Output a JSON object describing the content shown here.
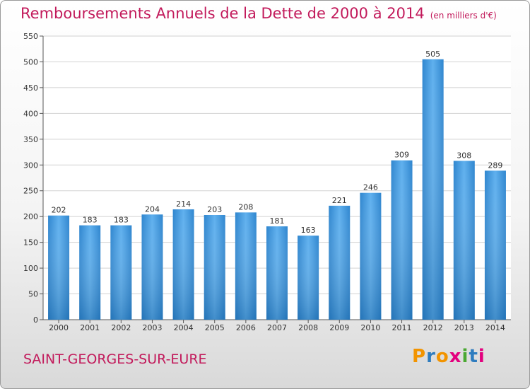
{
  "chart_data": {
    "type": "bar",
    "title": "Remboursements Annuels de la Dette de 2000 à 2014",
    "subtitle": "(en milliers d'€)",
    "categories": [
      "2000",
      "2001",
      "2002",
      "2003",
      "2004",
      "2005",
      "2006",
      "2007",
      "2008",
      "2009",
      "2010",
      "2011",
      "2012",
      "2013",
      "2014"
    ],
    "values": [
      202,
      183,
      183,
      204,
      214,
      203,
      208,
      181,
      163,
      221,
      246,
      309,
      505,
      308,
      289
    ],
    "ylim": [
      0,
      550
    ],
    "yticks": [
      0,
      50,
      100,
      150,
      200,
      250,
      300,
      350,
      400,
      450,
      500,
      550
    ],
    "grid": true,
    "bar_color": "#3f95d8"
  },
  "footer": {
    "city": "SAINT-GEORGES-SUR-EURE",
    "logo": [
      "P",
      "r",
      "o",
      "x",
      "i",
      "t",
      "i"
    ]
  },
  "colors": {
    "title": "#c21a5b",
    "logo": [
      "#f29400",
      "#2e7cbf",
      "#f29400",
      "#e3007e",
      "#4aa832",
      "#2e7cbf",
      "#e3007e"
    ]
  }
}
